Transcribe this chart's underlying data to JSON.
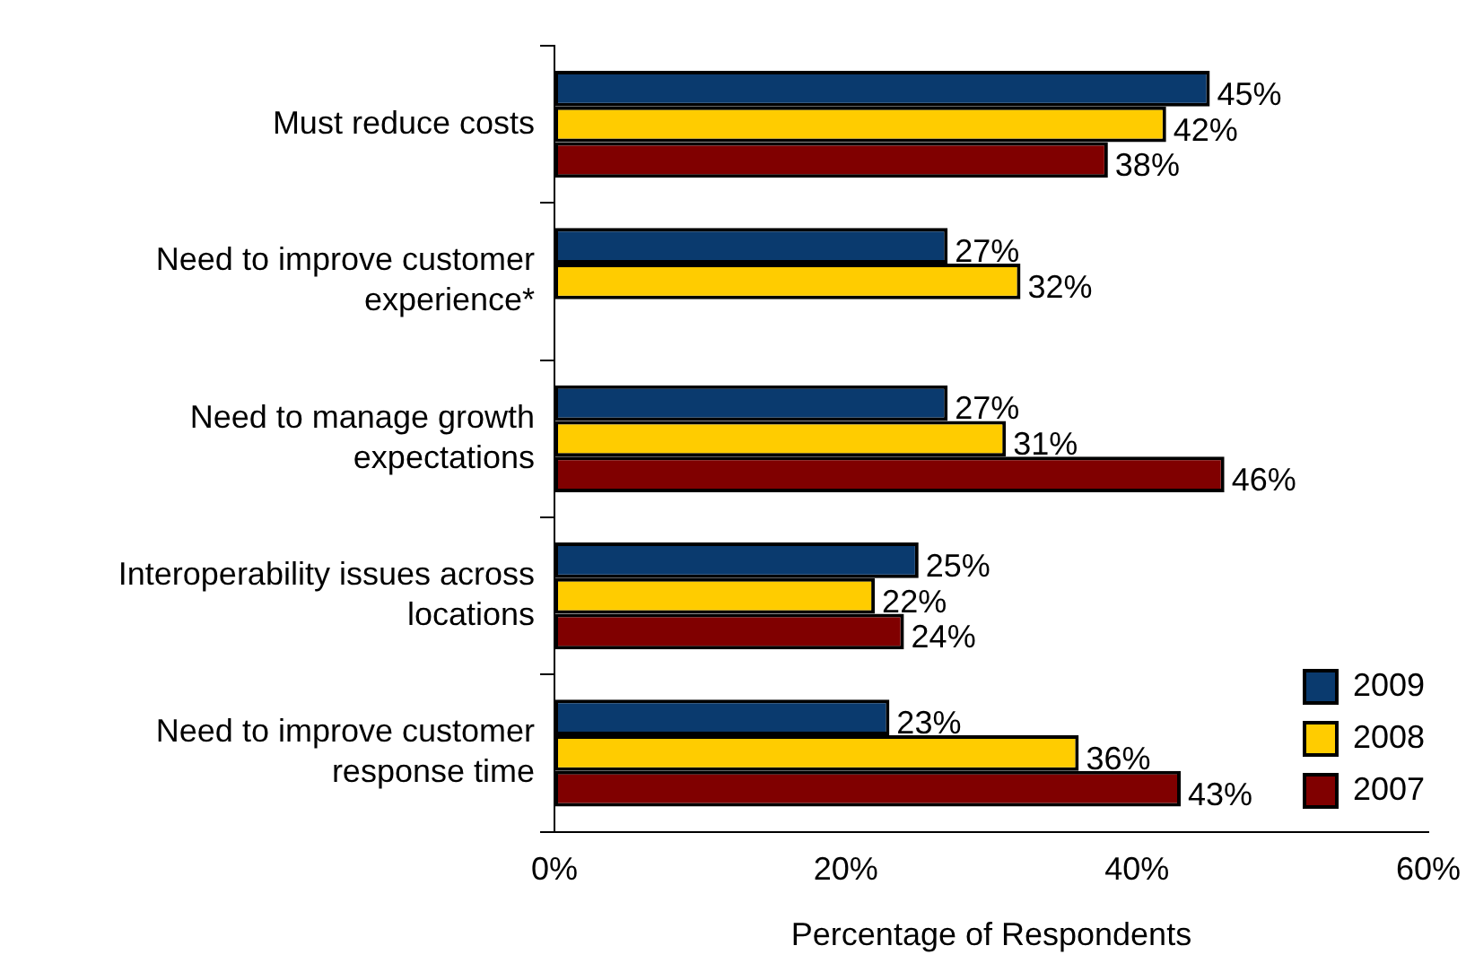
{
  "chart_data": {
    "type": "bar",
    "orientation": "horizontal",
    "xlabel": "Percentage of Respondents",
    "categories": [
      "Must reduce costs",
      "Need to improve customer experience*",
      "Need to manage growth expectations",
      "Interoperability issues across locations",
      "Need to improve customer response time"
    ],
    "series": [
      {
        "name": "2009",
        "color": "#0a3a6e",
        "values": [
          45,
          27,
          27,
          25,
          23
        ],
        "value_labels": [
          "45%",
          "27%",
          "27%",
          "25%",
          "23%"
        ]
      },
      {
        "name": "2008",
        "color": "#ffcc00",
        "values": [
          42,
          32,
          31,
          22,
          36
        ],
        "value_labels": [
          "42%",
          "32%",
          "31%",
          "22%",
          "36%"
        ]
      },
      {
        "name": "2007",
        "color": "#800000",
        "values": [
          38,
          null,
          46,
          24,
          43
        ],
        "value_labels": [
          "38%",
          null,
          "46%",
          "24%",
          "43%"
        ]
      }
    ],
    "xlim": [
      0,
      60
    ],
    "xticks": [
      {
        "value": 0,
        "label": "0%"
      },
      {
        "value": 20,
        "label": "20%"
      },
      {
        "value": 40,
        "label": "40%"
      },
      {
        "value": 60,
        "label": "60%"
      }
    ],
    "grid": false,
    "legend": "bottom right"
  }
}
